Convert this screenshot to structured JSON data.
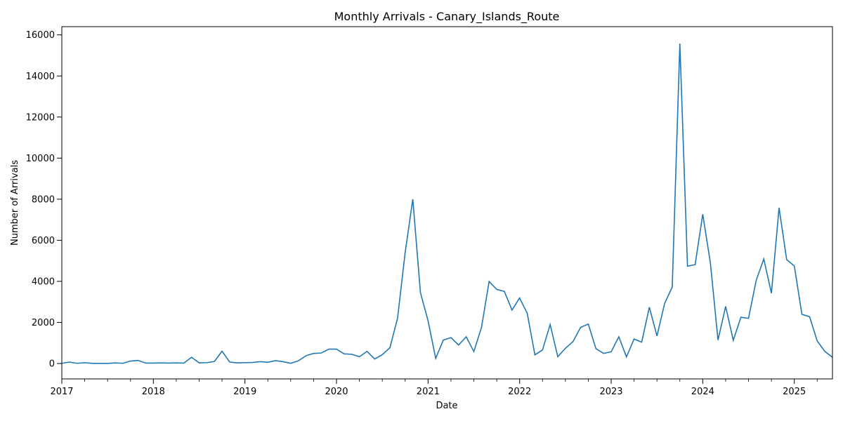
{
  "chart_data": {
    "type": "line",
    "title": "Monthly Arrivals - Canary_Islands_Route",
    "xlabel": "Date",
    "ylabel": "Number of Arrivals",
    "x_start": "2017-01",
    "x_end": "2025-06",
    "ylim": [
      -750,
      16400
    ],
    "x_ticks": [
      "2017",
      "2018",
      "2019",
      "2020",
      "2021",
      "2022",
      "2023",
      "2024",
      "2025"
    ],
    "y_ticks": [
      0,
      2000,
      4000,
      6000,
      8000,
      10000,
      12000,
      14000,
      16000
    ],
    "grid": false,
    "legend": "none",
    "line_color": "#1f77b4",
    "series": [
      {
        "x": [
          "2017-01",
          "2017-02",
          "2017-03",
          "2017-04",
          "2017-05",
          "2017-06",
          "2017-07",
          "2017-08",
          "2017-09",
          "2017-10",
          "2017-11",
          "2017-12",
          "2018-01",
          "2018-02",
          "2018-03",
          "2018-04",
          "2018-05",
          "2018-06",
          "2018-07",
          "2018-08",
          "2018-09",
          "2018-10",
          "2018-11",
          "2018-12",
          "2019-01",
          "2019-02",
          "2019-03",
          "2019-04",
          "2019-05",
          "2019-06",
          "2019-07",
          "2019-08",
          "2019-09",
          "2019-10",
          "2019-11",
          "2019-12",
          "2020-01",
          "2020-02",
          "2020-03",
          "2020-04",
          "2020-05",
          "2020-06",
          "2020-07",
          "2020-08",
          "2020-09",
          "2020-10",
          "2020-11",
          "2020-12",
          "2021-01",
          "2021-02",
          "2021-03",
          "2021-04",
          "2021-05",
          "2021-06",
          "2021-07",
          "2021-08",
          "2021-09",
          "2021-10",
          "2021-11",
          "2021-12",
          "2022-01",
          "2022-02",
          "2022-03",
          "2022-04",
          "2022-05",
          "2022-06",
          "2022-07",
          "2022-08",
          "2022-09",
          "2022-10",
          "2022-11",
          "2022-12",
          "2023-01",
          "2023-02",
          "2023-03",
          "2023-04",
          "2023-05",
          "2023-06",
          "2023-07",
          "2023-08",
          "2023-09",
          "2023-10",
          "2023-11",
          "2023-12",
          "2024-01",
          "2024-02",
          "2024-03",
          "2024-04",
          "2024-05",
          "2024-06",
          "2024-07",
          "2024-08",
          "2024-09",
          "2024-10",
          "2024-11",
          "2024-12",
          "2025-01",
          "2025-02",
          "2025-03",
          "2025-04",
          "2025-05",
          "2025-06"
        ],
        "y": [
          10,
          70,
          10,
          40,
          5,
          5,
          5,
          30,
          10,
          120,
          150,
          20,
          20,
          30,
          20,
          30,
          20,
          300,
          30,
          40,
          100,
          600,
          70,
          30,
          40,
          50,
          90,
          60,
          140,
          90,
          10,
          130,
          380,
          490,
          510,
          700,
          700,
          470,
          450,
          330,
          590,
          220,
          430,
          770,
          2200,
          5400,
          8000,
          3450,
          2080,
          250,
          1140,
          1260,
          900,
          1300,
          580,
          1750,
          3990,
          3610,
          3510,
          2600,
          3190,
          2440,
          420,
          660,
          1900,
          330,
          740,
          1070,
          1760,
          1920,
          720,
          490,
          570,
          1300,
          320,
          1190,
          1040,
          2740,
          1340,
          2920,
          3720,
          15580,
          4740,
          4810,
          7270,
          4900,
          1140,
          2780,
          1130,
          2250,
          2200,
          4040,
          5090,
          3420,
          7580,
          5060,
          4750,
          2390,
          2280,
          1100,
          590,
          300
        ]
      }
    ]
  }
}
